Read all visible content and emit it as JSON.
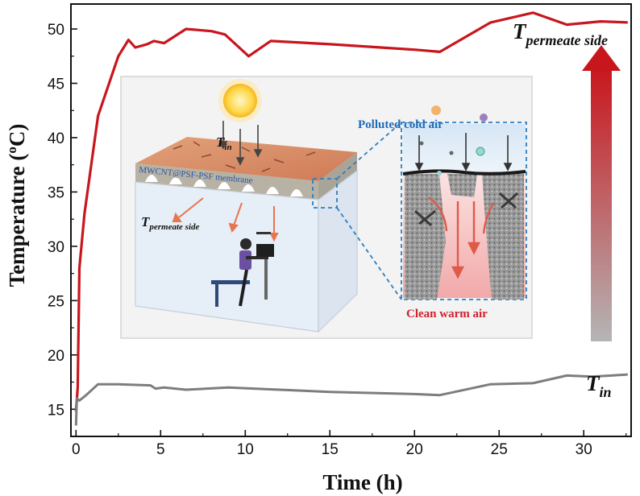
{
  "chart_data": {
    "type": "line",
    "xlabel": "Time (h)",
    "ylabel": "Temperature (oC)",
    "ylabel_main": "Temperature (",
    "ylabel_sup": "o",
    "ylabel_tail": "C)",
    "xlim": [
      -0.3,
      32.8
    ],
    "ylim": [
      12.5,
      52.3
    ],
    "xticks": [
      0,
      5,
      10,
      15,
      20,
      25,
      30
    ],
    "yticks": [
      15,
      20,
      25,
      30,
      35,
      40,
      45,
      50
    ],
    "grid": false,
    "series": [
      {
        "name": "Tpermeate side",
        "label_main": "T",
        "label_sub": "permeate side",
        "color": "#c8161d",
        "x": [
          0,
          0.1,
          0.2,
          0.5,
          1.3,
          2.5,
          3.1,
          3.5,
          4.2,
          4.6,
          5.2,
          6.5,
          8.0,
          8.8,
          10.2,
          11.5,
          15.0,
          20.0,
          21.5,
          24.5,
          27.0,
          29.0,
          31.0,
          32.6
        ],
        "y": [
          14.8,
          17.0,
          28.0,
          33.0,
          42.0,
          47.5,
          49.0,
          48.3,
          48.6,
          48.9,
          48.7,
          50.0,
          49.8,
          49.5,
          47.5,
          48.9,
          48.6,
          48.1,
          47.9,
          50.6,
          51.5,
          50.4,
          50.7,
          50.6
        ]
      },
      {
        "name": "Tin",
        "label_main": "T",
        "label_sub": "in",
        "color": "#7d7d7d",
        "x": [
          0,
          0.05,
          0.2,
          0.6,
          1.3,
          2.5,
          4.4,
          4.7,
          5.2,
          6.5,
          9.0,
          12.0,
          15.0,
          20.0,
          21.5,
          24.5,
          27.0,
          29.0,
          30.5,
          32.6
        ],
        "y": [
          13.5,
          16.0,
          15.8,
          16.3,
          17.3,
          17.3,
          17.2,
          16.9,
          17.0,
          16.8,
          17.0,
          16.8,
          16.6,
          16.4,
          16.3,
          17.3,
          17.4,
          18.1,
          18.0,
          18.2
        ]
      }
    ],
    "inset": {
      "polluted_label": "Polluted cold air",
      "clean_label": "Clean warm air",
      "membrane_label": "MWCNT@PSF-PSF membrane",
      "tin_main": "T",
      "tin_sub": "in",
      "tperm_main": "T",
      "tperm_sub": "permeate side"
    }
  }
}
